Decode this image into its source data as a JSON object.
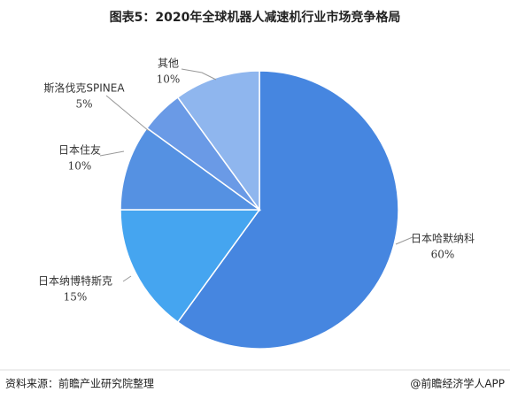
{
  "chart_data": {
    "type": "pie",
    "title": "图表5：2020年全球机器人减速机行业市场竞争格局",
    "categories": [
      "日本哈默纳科",
      "日本纳博特斯克",
      "日本住友",
      "斯洛伐克SPINEA",
      "其他"
    ],
    "values": [
      60,
      15,
      10,
      5,
      10
    ],
    "value_labels": [
      "60%",
      "15%",
      "10%",
      "5%",
      "10%"
    ],
    "colors": [
      "#4686e0",
      "#45a5f0",
      "#5591e2",
      "#6a9ae6",
      "#8fb6ee"
    ],
    "source": "资料来源：前瞻产业研究院整理",
    "credit": "@前瞻经济学人APP"
  }
}
